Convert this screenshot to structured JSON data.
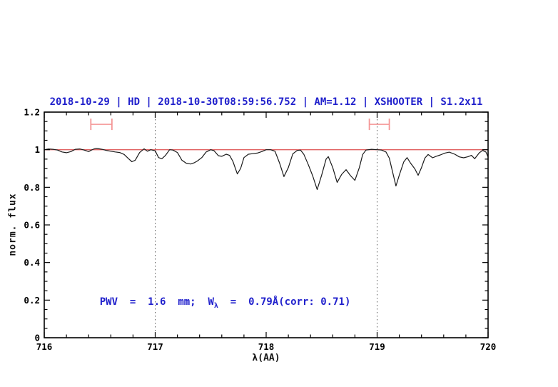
{
  "chart_data": {
    "type": "line",
    "title": "2018-10-29 | HD | 2018-10-30T08:59:56.752 | AM=1.12 | XSHOOTER | S1.2x11",
    "xlabel": "λ(AA)",
    "ylabel": "norm. flux",
    "xlim": [
      716,
      720
    ],
    "ylim": [
      0,
      1.2
    ],
    "x_major_ticks": [
      716,
      717,
      718,
      719,
      720
    ],
    "x_tick_labels": [
      "716",
      "717",
      "718",
      "719",
      "720"
    ],
    "x_minor_step": 0.2,
    "y_major_ticks": [
      0,
      0.2,
      0.4,
      0.6,
      0.8,
      1,
      1.2
    ],
    "y_tick_labels": [
      "0",
      "0.2",
      "0.4",
      "0.6",
      "0.8",
      "1",
      "1.2"
    ],
    "y_minor_step": 0.05,
    "grid": false,
    "vertical_dotted_lines_x": [
      717,
      719
    ],
    "continuum_level": 1.0,
    "band_markers": [
      {
        "x_start": 716.42,
        "x_end": 716.61,
        "flux": 1.135
      },
      {
        "x_start": 718.93,
        "x_end": 719.11,
        "flux": 1.135
      }
    ],
    "annotation": {
      "prefix": "PWV  =  1.6  mm;  W",
      "subscript": "λ",
      "suffix": "  =  0.79Å(corr: 0.71)",
      "x": 716.5,
      "y": 0.2
    },
    "colors": {
      "accent_blue": "#2020cc",
      "continuum_red": "#e06060",
      "marker_red": "#f49595",
      "spectrum_black": "#1a1a1a",
      "dotted_guide": "#555555",
      "axis_black": "#000000"
    },
    "series": [
      {
        "name": "observed spectrum",
        "points": [
          [
            716.0,
            1.0
          ],
          [
            716.04,
            1.004
          ],
          [
            716.08,
            1.002
          ],
          [
            716.12,
            0.998
          ],
          [
            716.16,
            0.988
          ],
          [
            716.2,
            0.984
          ],
          [
            716.24,
            0.99
          ],
          [
            716.28,
            1.002
          ],
          [
            716.32,
            1.004
          ],
          [
            716.36,
            0.998
          ],
          [
            716.4,
            0.99
          ],
          [
            716.44,
            1.002
          ],
          [
            716.47,
            1.008
          ],
          [
            716.52,
            1.002
          ],
          [
            716.56,
            0.996
          ],
          [
            716.6,
            0.992
          ],
          [
            716.64,
            0.988
          ],
          [
            716.68,
            0.985
          ],
          [
            716.72,
            0.975
          ],
          [
            716.76,
            0.952
          ],
          [
            716.79,
            0.936
          ],
          [
            716.82,
            0.944
          ],
          [
            716.86,
            0.985
          ],
          [
            716.9,
            1.005
          ],
          [
            716.93,
            0.992
          ],
          [
            716.96,
            1.0
          ],
          [
            717.0,
            0.994
          ],
          [
            717.03,
            0.958
          ],
          [
            717.06,
            0.952
          ],
          [
            717.09,
            0.968
          ],
          [
            717.13,
            1.0
          ],
          [
            717.16,
            0.998
          ],
          [
            717.2,
            0.985
          ],
          [
            717.24,
            0.945
          ],
          [
            717.28,
            0.928
          ],
          [
            717.32,
            0.924
          ],
          [
            717.35,
            0.93
          ],
          [
            717.38,
            0.94
          ],
          [
            717.42,
            0.958
          ],
          [
            717.46,
            0.988
          ],
          [
            717.5,
            1.0
          ],
          [
            717.53,
            0.995
          ],
          [
            717.57,
            0.968
          ],
          [
            717.6,
            0.965
          ],
          [
            717.64,
            0.976
          ],
          [
            717.67,
            0.97
          ],
          [
            717.7,
            0.938
          ],
          [
            717.74,
            0.871
          ],
          [
            717.77,
            0.9
          ],
          [
            717.8,
            0.958
          ],
          [
            717.84,
            0.976
          ],
          [
            717.88,
            0.979
          ],
          [
            717.92,
            0.982
          ],
          [
            717.96,
            0.99
          ],
          [
            718.0,
            1.0
          ],
          [
            718.04,
            1.0
          ],
          [
            718.08,
            0.992
          ],
          [
            718.12,
            0.93
          ],
          [
            718.16,
            0.857
          ],
          [
            718.2,
            0.905
          ],
          [
            718.24,
            0.978
          ],
          [
            718.28,
            0.996
          ],
          [
            718.31,
            0.998
          ],
          [
            718.34,
            0.975
          ],
          [
            718.38,
            0.92
          ],
          [
            718.42,
            0.86
          ],
          [
            718.46,
            0.788
          ],
          [
            718.5,
            0.865
          ],
          [
            718.54,
            0.95
          ],
          [
            718.56,
            0.963
          ],
          [
            718.6,
            0.905
          ],
          [
            718.64,
            0.826
          ],
          [
            718.68,
            0.868
          ],
          [
            718.72,
            0.894
          ],
          [
            718.76,
            0.862
          ],
          [
            718.8,
            0.837
          ],
          [
            718.84,
            0.905
          ],
          [
            718.87,
            0.975
          ],
          [
            718.9,
            0.998
          ],
          [
            718.95,
            1.002
          ],
          [
            719.0,
            1.0
          ],
          [
            719.04,
            0.998
          ],
          [
            719.08,
            0.988
          ],
          [
            719.11,
            0.955
          ],
          [
            719.14,
            0.88
          ],
          [
            719.17,
            0.807
          ],
          [
            719.2,
            0.865
          ],
          [
            719.24,
            0.935
          ],
          [
            719.27,
            0.958
          ],
          [
            719.3,
            0.93
          ],
          [
            719.34,
            0.898
          ],
          [
            719.37,
            0.864
          ],
          [
            719.4,
            0.905
          ],
          [
            719.43,
            0.955
          ],
          [
            719.46,
            0.975
          ],
          [
            719.5,
            0.957
          ],
          [
            719.53,
            0.964
          ],
          [
            719.57,
            0.972
          ],
          [
            719.61,
            0.982
          ],
          [
            719.65,
            0.987
          ],
          [
            719.7,
            0.976
          ],
          [
            719.74,
            0.962
          ],
          [
            719.78,
            0.957
          ],
          [
            719.82,
            0.963
          ],
          [
            719.85,
            0.97
          ],
          [
            719.88,
            0.952
          ],
          [
            719.92,
            0.983
          ],
          [
            719.95,
            0.996
          ],
          [
            719.98,
            0.988
          ],
          [
            720.0,
            0.962
          ]
        ]
      },
      {
        "name": "continuum fit",
        "points": [
          [
            716.0,
            1.0
          ],
          [
            720.0,
            1.0
          ]
        ]
      }
    ]
  }
}
